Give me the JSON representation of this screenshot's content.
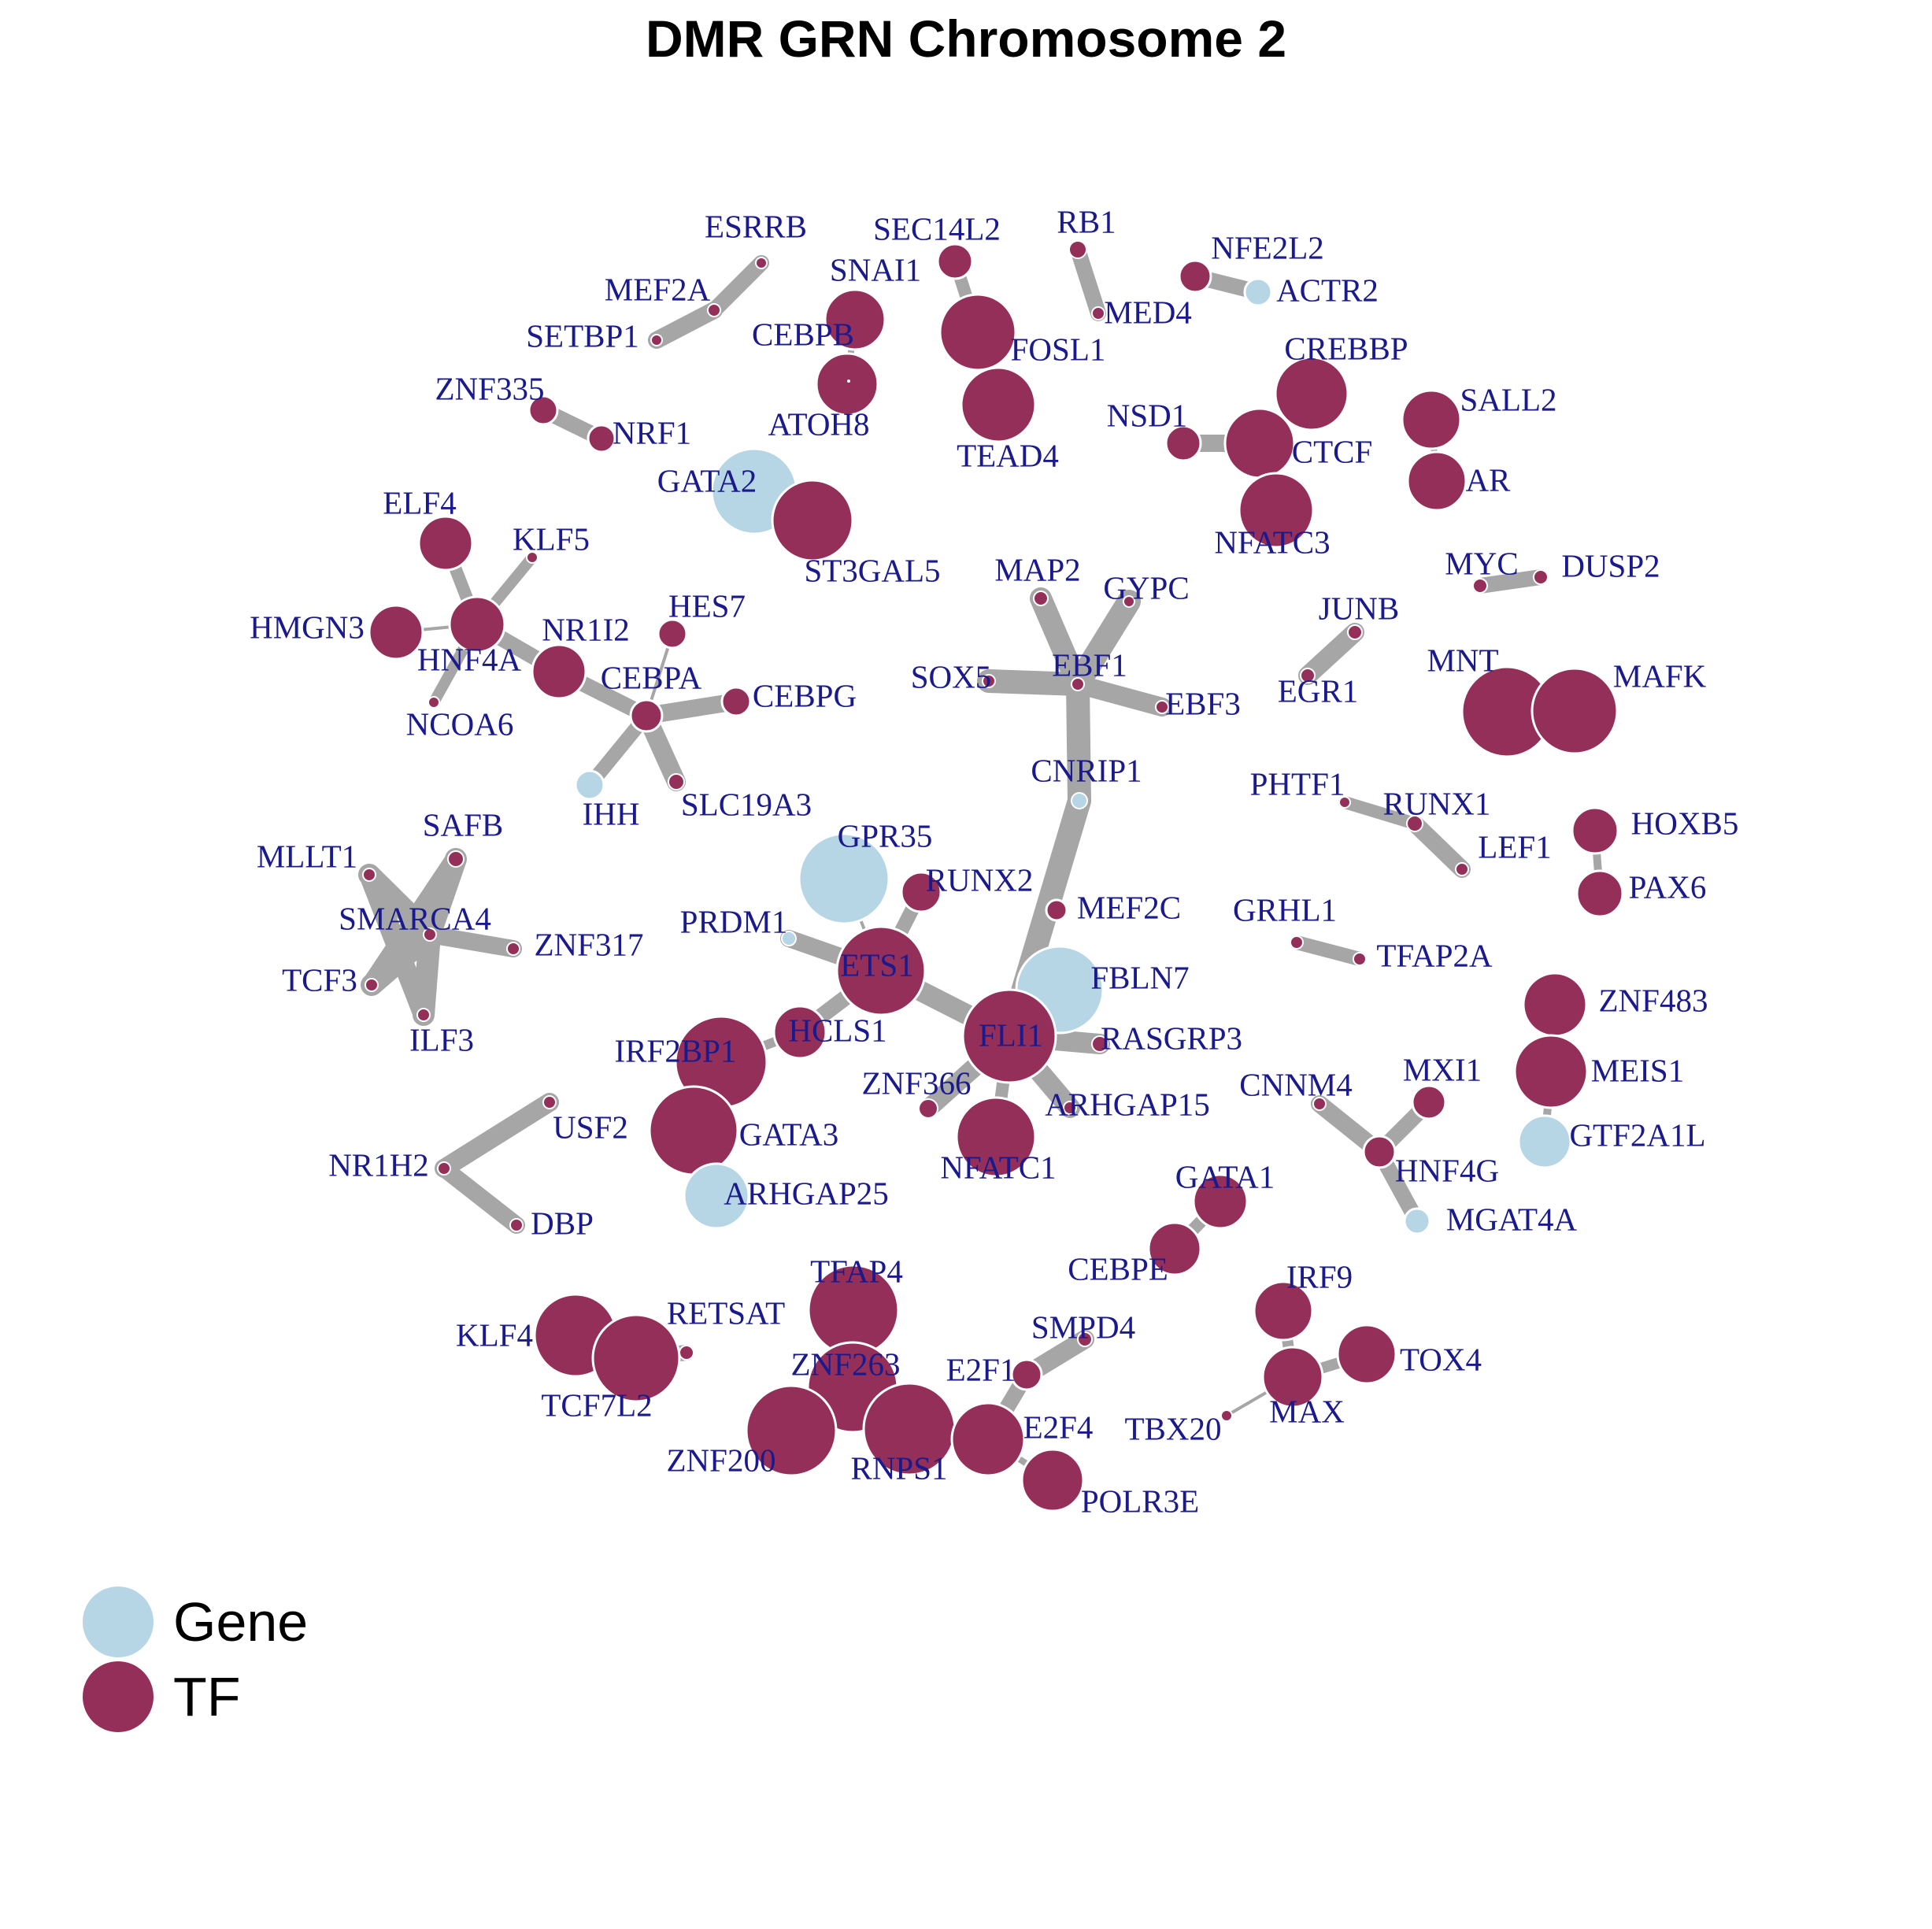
{
  "title": "DMR GRN Chromosome 2",
  "colors": {
    "gene": "#b6d5e5",
    "tf": "#942f5a",
    "edge": "#a6a6a6",
    "label": "#1a1a8c",
    "node_stroke": "#ffffff"
  },
  "legend": [
    {
      "label": "Gene",
      "type": "gene"
    },
    {
      "label": "TF",
      "type": "tf"
    }
  ],
  "nodes": [
    {
      "id": "ESRRB",
      "type": "tf"
    },
    {
      "id": "MEF2A",
      "type": "tf"
    },
    {
      "id": "SETBP1",
      "type": "tf"
    },
    {
      "id": "SEC14L2",
      "type": "tf"
    },
    {
      "id": "RB1",
      "type": "tf"
    },
    {
      "id": "MED4",
      "type": "tf"
    },
    {
      "id": "NFE2L2",
      "type": "tf"
    },
    {
      "id": "ACTR2",
      "type": "gene"
    },
    {
      "id": "SNAI1",
      "type": "tf"
    },
    {
      "id": "CEBPB",
      "type": "tf"
    },
    {
      "id": "ATOH8",
      "type": "tf"
    },
    {
      "id": "FOSL1",
      "type": "tf"
    },
    {
      "id": "TEAD4",
      "type": "tf"
    },
    {
      "id": "CREBBP",
      "type": "tf"
    },
    {
      "id": "SALL2",
      "type": "tf"
    },
    {
      "id": "AR",
      "type": "tf"
    },
    {
      "id": "NSD1",
      "type": "tf"
    },
    {
      "id": "CTCF",
      "type": "tf"
    },
    {
      "id": "NFATC3",
      "type": "tf"
    },
    {
      "id": "ZNF335",
      "type": "tf"
    },
    {
      "id": "NRF1",
      "type": "tf"
    },
    {
      "id": "GATA2",
      "type": "gene"
    },
    {
      "id": "ST3GAL5",
      "type": "tf"
    },
    {
      "id": "ELF4",
      "type": "tf"
    },
    {
      "id": "KLF5",
      "type": "tf"
    },
    {
      "id": "HMGN3",
      "type": "tf"
    },
    {
      "id": "HNF4A",
      "type": "tf"
    },
    {
      "id": "NR1I2",
      "type": "tf"
    },
    {
      "id": "NCOA6",
      "type": "tf"
    },
    {
      "id": "HES7",
      "type": "tf"
    },
    {
      "id": "CEBPA",
      "type": "tf"
    },
    {
      "id": "CEBPG",
      "type": "tf"
    },
    {
      "id": "IHH",
      "type": "gene"
    },
    {
      "id": "SLC19A3",
      "type": "tf"
    },
    {
      "id": "MAP2",
      "type": "tf"
    },
    {
      "id": "GYPC",
      "type": "tf"
    },
    {
      "id": "SOX5",
      "type": "tf"
    },
    {
      "id": "EBF1",
      "type": "tf"
    },
    {
      "id": "EBF3",
      "type": "tf"
    },
    {
      "id": "CNRIP1",
      "type": "gene"
    },
    {
      "id": "MYC",
      "type": "tf"
    },
    {
      "id": "DUSP2",
      "type": "tf"
    },
    {
      "id": "JUNB",
      "type": "tf"
    },
    {
      "id": "EGR1",
      "type": "tf"
    },
    {
      "id": "MNT",
      "type": "tf"
    },
    {
      "id": "MAFK",
      "type": "tf"
    },
    {
      "id": "PHTF1",
      "type": "tf"
    },
    {
      "id": "RUNX1",
      "type": "tf"
    },
    {
      "id": "LEF1",
      "type": "tf"
    },
    {
      "id": "HOXB5",
      "type": "tf"
    },
    {
      "id": "PAX6",
      "type": "tf"
    },
    {
      "id": "MLLT1",
      "type": "tf"
    },
    {
      "id": "SAFB",
      "type": "tf"
    },
    {
      "id": "SMARCA4",
      "type": "tf"
    },
    {
      "id": "ZNF317",
      "type": "tf"
    },
    {
      "id": "TCF3",
      "type": "tf"
    },
    {
      "id": "ILF3",
      "type": "tf"
    },
    {
      "id": "GPR35",
      "type": "gene"
    },
    {
      "id": "RUNX2",
      "type": "tf"
    },
    {
      "id": "PRDM1",
      "type": "gene"
    },
    {
      "id": "ETS1",
      "type": "tf"
    },
    {
      "id": "MEF2C",
      "type": "tf"
    },
    {
      "id": "FBLN7",
      "type": "gene"
    },
    {
      "id": "HCLS1",
      "type": "tf"
    },
    {
      "id": "FLI1",
      "type": "tf"
    },
    {
      "id": "RASGRP3",
      "type": "tf"
    },
    {
      "id": "IRF2BP1",
      "type": "tf"
    },
    {
      "id": "ZNF366",
      "type": "tf"
    },
    {
      "id": "ARHGAP15",
      "type": "tf"
    },
    {
      "id": "NFATC1",
      "type": "tf"
    },
    {
      "id": "GATA3",
      "type": "tf"
    },
    {
      "id": "ARHGAP25",
      "type": "gene"
    },
    {
      "id": "GRHL1",
      "type": "tf"
    },
    {
      "id": "TFAP2A",
      "type": "tf"
    },
    {
      "id": "ZNF483",
      "type": "tf"
    },
    {
      "id": "MEIS1",
      "type": "tf"
    },
    {
      "id": "GTF2A1L",
      "type": "gene"
    },
    {
      "id": "CNNM4",
      "type": "tf"
    },
    {
      "id": "MXI1",
      "type": "tf"
    },
    {
      "id": "HNF4G",
      "type": "tf"
    },
    {
      "id": "MGAT4A",
      "type": "gene"
    },
    {
      "id": "USF2",
      "type": "tf"
    },
    {
      "id": "NR1H2",
      "type": "tf"
    },
    {
      "id": "DBP",
      "type": "tf"
    },
    {
      "id": "GATA1",
      "type": "tf"
    },
    {
      "id": "CEBPE",
      "type": "tf"
    },
    {
      "id": "KLF4",
      "type": "tf"
    },
    {
      "id": "RETSAT",
      "type": "tf"
    },
    {
      "id": "TCF7L2",
      "type": "tf"
    },
    {
      "id": "TFAP4",
      "type": "tf"
    },
    {
      "id": "ZNF263",
      "type": "tf"
    },
    {
      "id": "ZNF200",
      "type": "tf"
    },
    {
      "id": "RNPS1",
      "type": "tf"
    },
    {
      "id": "SMPD4",
      "type": "tf"
    },
    {
      "id": "E2F1",
      "type": "tf"
    },
    {
      "id": "E2F4",
      "type": "tf"
    },
    {
      "id": "POLR3E",
      "type": "tf"
    },
    {
      "id": "IRF9",
      "type": "tf"
    },
    {
      "id": "TOX4",
      "type": "tf"
    },
    {
      "id": "MAX",
      "type": "tf"
    },
    {
      "id": "TBX20",
      "type": "tf"
    }
  ],
  "edges": [
    [
      "ESRRB",
      "MEF2A"
    ],
    [
      "MEF2A",
      "SETBP1"
    ],
    [
      "SEC14L2",
      "FOSL1"
    ],
    [
      "FOSL1",
      "TEAD4"
    ],
    [
      "RB1",
      "MED4"
    ],
    [
      "NFE2L2",
      "ACTR2"
    ],
    [
      "SNAI1",
      "CEBPB"
    ],
    [
      "CEBPB",
      "ATOH8"
    ],
    [
      "CREBBP",
      "CTCF"
    ],
    [
      "NSD1",
      "CTCF"
    ],
    [
      "CTCF",
      "NFATC3"
    ],
    [
      "SALL2",
      "AR"
    ],
    [
      "ZNF335",
      "NRF1"
    ],
    [
      "GATA2",
      "ST3GAL5"
    ],
    [
      "ELF4",
      "HNF4A"
    ],
    [
      "KLF5",
      "HNF4A"
    ],
    [
      "HMGN3",
      "HNF4A"
    ],
    [
      "HNF4A",
      "NCOA6"
    ],
    [
      "HNF4A",
      "NR1I2"
    ],
    [
      "NR1I2",
      "CEBPA"
    ],
    [
      "HES7",
      "CEBPA"
    ],
    [
      "CEBPA",
      "CEBPG"
    ],
    [
      "CEBPA",
      "IHH"
    ],
    [
      "CEBPA",
      "SLC19A3"
    ],
    [
      "MAP2",
      "EBF1"
    ],
    [
      "GYPC",
      "EBF1"
    ],
    [
      "SOX5",
      "EBF1"
    ],
    [
      "EBF1",
      "EBF3"
    ],
    [
      "EBF1",
      "CNRIP1"
    ],
    [
      "CNRIP1",
      "FLI1"
    ],
    [
      "MYC",
      "DUSP2"
    ],
    [
      "JUNB",
      "EGR1"
    ],
    [
      "MNT",
      "MAFK"
    ],
    [
      "PHTF1",
      "RUNX1"
    ],
    [
      "RUNX1",
      "LEF1"
    ],
    [
      "HOXB5",
      "PAX6"
    ],
    [
      "MLLT1",
      "SMARCA4"
    ],
    [
      "SAFB",
      "SMARCA4"
    ],
    [
      "SMARCA4",
      "ZNF317"
    ],
    [
      "SMARCA4",
      "TCF3"
    ],
    [
      "SMARCA4",
      "ILF3"
    ],
    [
      "MLLT1",
      "ILF3"
    ],
    [
      "SAFB",
      "TCF3"
    ],
    [
      "GPR35",
      "ETS1"
    ],
    [
      "RUNX2",
      "ETS1"
    ],
    [
      "PRDM1",
      "ETS1"
    ],
    [
      "ETS1",
      "FLI1"
    ],
    [
      "ETS1",
      "HCLS1"
    ],
    [
      "HCLS1",
      "IRF2BP1"
    ],
    [
      "MEF2C",
      "FLI1"
    ],
    [
      "FBLN7",
      "FLI1"
    ],
    [
      "FLI1",
      "RASGRP3"
    ],
    [
      "FLI1",
      "ZNF366"
    ],
    [
      "FLI1",
      "ARHGAP15"
    ],
    [
      "FLI1",
      "NFATC1"
    ],
    [
      "IRF2BP1",
      "GATA3"
    ],
    [
      "GATA3",
      "ARHGAP25"
    ],
    [
      "GRHL1",
      "TFAP2A"
    ],
    [
      "ZNF483",
      "MEIS1"
    ],
    [
      "MEIS1",
      "GTF2A1L"
    ],
    [
      "CNNM4",
      "HNF4G"
    ],
    [
      "MXI1",
      "HNF4G"
    ],
    [
      "HNF4G",
      "MGAT4A"
    ],
    [
      "USF2",
      "NR1H2"
    ],
    [
      "NR1H2",
      "DBP"
    ],
    [
      "GATA1",
      "CEBPE"
    ],
    [
      "KLF4",
      "TCF7L2"
    ],
    [
      "TCF7L2",
      "RETSAT"
    ],
    [
      "TFAP4",
      "ZNF263"
    ],
    [
      "ZNF263",
      "ZNF200"
    ],
    [
      "ZNF263",
      "RNPS1"
    ],
    [
      "SMPD4",
      "E2F1"
    ],
    [
      "E2F1",
      "E2F4"
    ],
    [
      "E2F4",
      "POLR3E"
    ],
    [
      "IRF9",
      "MAX"
    ],
    [
      "TOX4",
      "MAX"
    ],
    [
      "MAX",
      "TBX20"
    ]
  ]
}
